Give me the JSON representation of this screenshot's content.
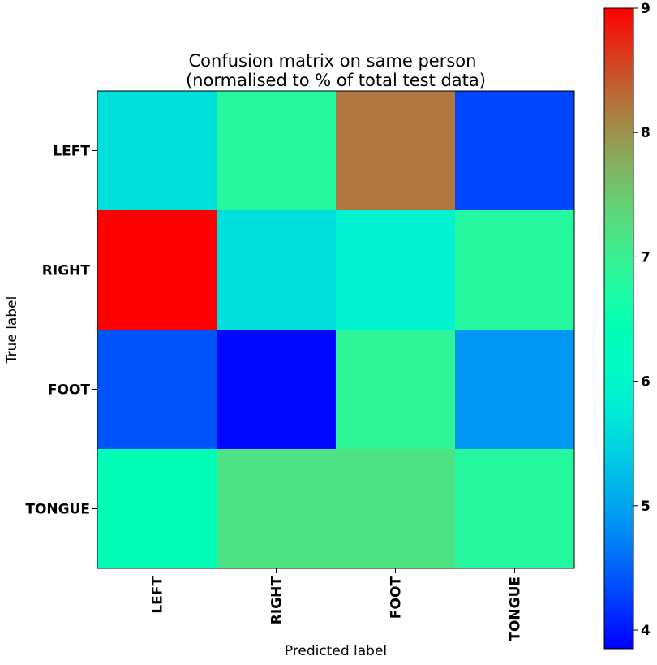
{
  "chart_data": {
    "type": "heatmap",
    "title": "Confusion matrix on same person\n(normalised to % of total test data)",
    "title_lines": [
      "Confusion matrix on same person",
      "(normalised to % of total test data)"
    ],
    "xlabel": "Predicted label",
    "ylabel": "True label",
    "x_categories": [
      "LEFT",
      "RIGHT",
      "FOOT",
      "TONGUE"
    ],
    "y_categories": [
      "LEFT",
      "RIGHT",
      "FOOT",
      "TONGUE"
    ],
    "values": [
      [
        5.6,
        6.8,
        8.2,
        4.3
      ],
      [
        9.0,
        5.6,
        5.9,
        6.8
      ],
      [
        4.4,
        3.9,
        6.9,
        4.9
      ],
      [
        6.4,
        7.2,
        7.2,
        6.8
      ]
    ],
    "colormap": "rainbow",
    "colorbar": {
      "range": [
        3.85,
        9.0
      ],
      "ticks": [
        "4",
        "5",
        "6",
        "7",
        "8",
        "9"
      ]
    },
    "grid": false
  }
}
